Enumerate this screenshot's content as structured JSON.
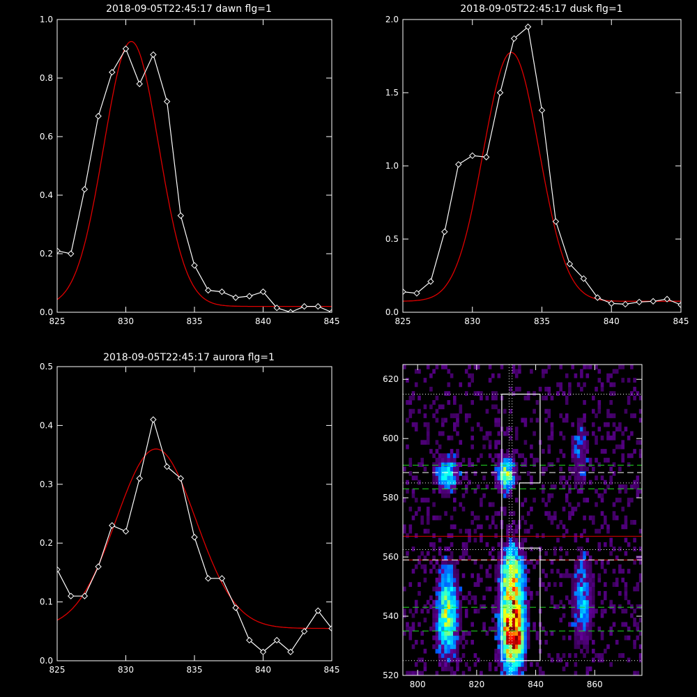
{
  "colors": {
    "background": "#000000",
    "axes": "#ffffff",
    "observed": "#ffffff",
    "fit": "#e00000",
    "green_line": "#22dd22",
    "red_line": "#e00000",
    "white_line": "#ffffff"
  },
  "chart_data": [
    {
      "type": "line",
      "title": "2018-09-05T22:45:17 dawn flg=1",
      "xlim": [
        825,
        845
      ],
      "ylim": [
        0,
        1.0
      ],
      "xticks": [
        "825",
        "830",
        "835",
        "840",
        "845"
      ],
      "yticks": [
        "0.0",
        "0.2",
        "0.4",
        "0.6",
        "0.8",
        "1.0"
      ],
      "x": [
        825,
        826,
        827,
        828,
        829,
        830,
        831,
        832,
        833,
        834,
        835,
        836,
        837,
        838,
        839,
        840,
        841,
        842,
        843,
        844,
        845
      ],
      "series": [
        {
          "style": "line-diamond",
          "values": [
            0.21,
            0.2,
            0.42,
            0.67,
            0.82,
            0.9,
            0.78,
            0.88,
            0.72,
            0.33,
            0.16,
            0.075,
            0.07,
            0.05,
            0.055,
            0.07,
            0.015,
            0.0,
            0.02,
            0.02,
            0.0
          ]
        },
        {
          "style": "smooth-fit",
          "gaussian": {
            "amplitude": 0.905,
            "center": 830.4,
            "sigma": 2.0,
            "baseline": 0.02
          }
        }
      ]
    },
    {
      "type": "line",
      "title": "2018-09-05T22:45:17 dusk flg=1",
      "xlim": [
        825,
        845
      ],
      "ylim": [
        0,
        2.0
      ],
      "xticks": [
        "825",
        "830",
        "835",
        "840",
        "845"
      ],
      "yticks": [
        "0.0",
        "0.5",
        "1.0",
        "1.5",
        "2.0"
      ],
      "x": [
        825,
        826,
        827,
        828,
        829,
        830,
        831,
        832,
        833,
        834,
        835,
        836,
        837,
        838,
        839,
        840,
        841,
        842,
        843,
        844,
        845
      ],
      "series": [
        {
          "style": "line-diamond",
          "values": [
            0.14,
            0.13,
            0.21,
            0.55,
            1.01,
            1.07,
            1.06,
            1.5,
            1.87,
            1.95,
            1.38,
            0.62,
            0.33,
            0.23,
            0.1,
            0.06,
            0.055,
            0.07,
            0.075,
            0.09,
            0.05
          ]
        },
        {
          "style": "smooth-fit",
          "gaussian": {
            "amplitude": 1.7,
            "center": 832.8,
            "sigma": 2.0,
            "baseline": 0.075
          }
        }
      ]
    },
    {
      "type": "line",
      "title": "2018-09-05T22:45:17 aurora flg=1",
      "xlim": [
        825,
        845
      ],
      "ylim": [
        0,
        0.5
      ],
      "xticks": [
        "825",
        "830",
        "835",
        "840",
        "845"
      ],
      "yticks": [
        "0.0",
        "0.1",
        "0.2",
        "0.3",
        "0.4",
        "0.5"
      ],
      "x": [
        825,
        826,
        827,
        828,
        829,
        830,
        831,
        832,
        833,
        834,
        835,
        836,
        837,
        838,
        839,
        840,
        841,
        842,
        843,
        844,
        845
      ],
      "series": [
        {
          "style": "line-diamond",
          "values": [
            0.155,
            0.11,
            0.11,
            0.16,
            0.23,
            0.22,
            0.31,
            0.41,
            0.33,
            0.31,
            0.21,
            0.14,
            0.14,
            0.09,
            0.035,
            0.015,
            0.035,
            0.015,
            0.05,
            0.085,
            0.055
          ]
        },
        {
          "style": "smooth-fit",
          "gaussian": {
            "amplitude": 0.305,
            "center": 832.2,
            "sigma": 2.9,
            "baseline": 0.055
          }
        }
      ]
    },
    {
      "type": "heatmap",
      "title": "",
      "xlim": [
        795,
        876
      ],
      "ylim": [
        520,
        625
      ],
      "xticks": [
        "800",
        "820",
        "840",
        "860"
      ],
      "yticks": [
        "520",
        "540",
        "560",
        "580",
        "600",
        "620"
      ],
      "blobs": [
        {
          "x": 810,
          "y": 541,
          "sx": 2.2,
          "sy": 9,
          "amp": 0.42
        },
        {
          "x": 832,
          "y": 537,
          "sx": 2.4,
          "sy": 9,
          "amp": 0.85
        },
        {
          "x": 833,
          "y": 532,
          "sx": 1.5,
          "sy": 3,
          "amp": 0.4
        },
        {
          "x": 832,
          "y": 555,
          "sx": 2.4,
          "sy": 6,
          "amp": 0.4
        },
        {
          "x": 810,
          "y": 588,
          "sx": 2.5,
          "sy": 3.5,
          "amp": 0.28
        },
        {
          "x": 830,
          "y": 588,
          "sx": 1.8,
          "sy": 3.5,
          "amp": 0.45
        },
        {
          "x": 856,
          "y": 545,
          "sx": 2.0,
          "sy": 10,
          "amp": 0.18
        },
        {
          "x": 855,
          "y": 595,
          "sx": 2.0,
          "sy": 8,
          "amp": 0.1
        }
      ],
      "boxes": [
        {
          "poly": [
            [
              828.5,
              615
            ],
            [
              841.5,
              615
            ],
            [
              841.5,
              585
            ],
            [
              834.5,
              585
            ],
            [
              834.5,
              563
            ],
            [
              841.5,
              563
            ],
            [
              841.5,
              525
            ],
            [
              828.5,
              525
            ]
          ]
        }
      ],
      "hlines": [
        {
          "y": 591,
          "color": "green_line",
          "dash": "dashed"
        },
        {
          "y": 588.5,
          "color": "white_line",
          "dash": "dashed"
        },
        {
          "y": 583,
          "color": "green_line",
          "dash": "dashed"
        },
        {
          "y": 567,
          "color": "red_line",
          "dash": "solid"
        },
        {
          "y": 559,
          "color": "red_line",
          "dash": "solid"
        },
        {
          "y": 559,
          "color": "white_line",
          "dash": "dashed"
        },
        {
          "y": 543,
          "color": "green_line",
          "dash": "dashed"
        },
        {
          "y": 535,
          "color": "green_line",
          "dash": "dashed"
        },
        {
          "y": 615,
          "color": "white_line",
          "dash": "dotted"
        },
        {
          "y": 585,
          "color": "white_line",
          "dash": "dotted"
        },
        {
          "y": 562.5,
          "color": "white_line",
          "dash": "dotted"
        },
        {
          "y": 525,
          "color": "white_line",
          "dash": "dotted"
        }
      ],
      "vlines": [
        {
          "x": 831,
          "color": "white_line",
          "dash": "dotted"
        },
        {
          "x": 832,
          "color": "white_line",
          "dash": "dotted"
        }
      ]
    }
  ]
}
